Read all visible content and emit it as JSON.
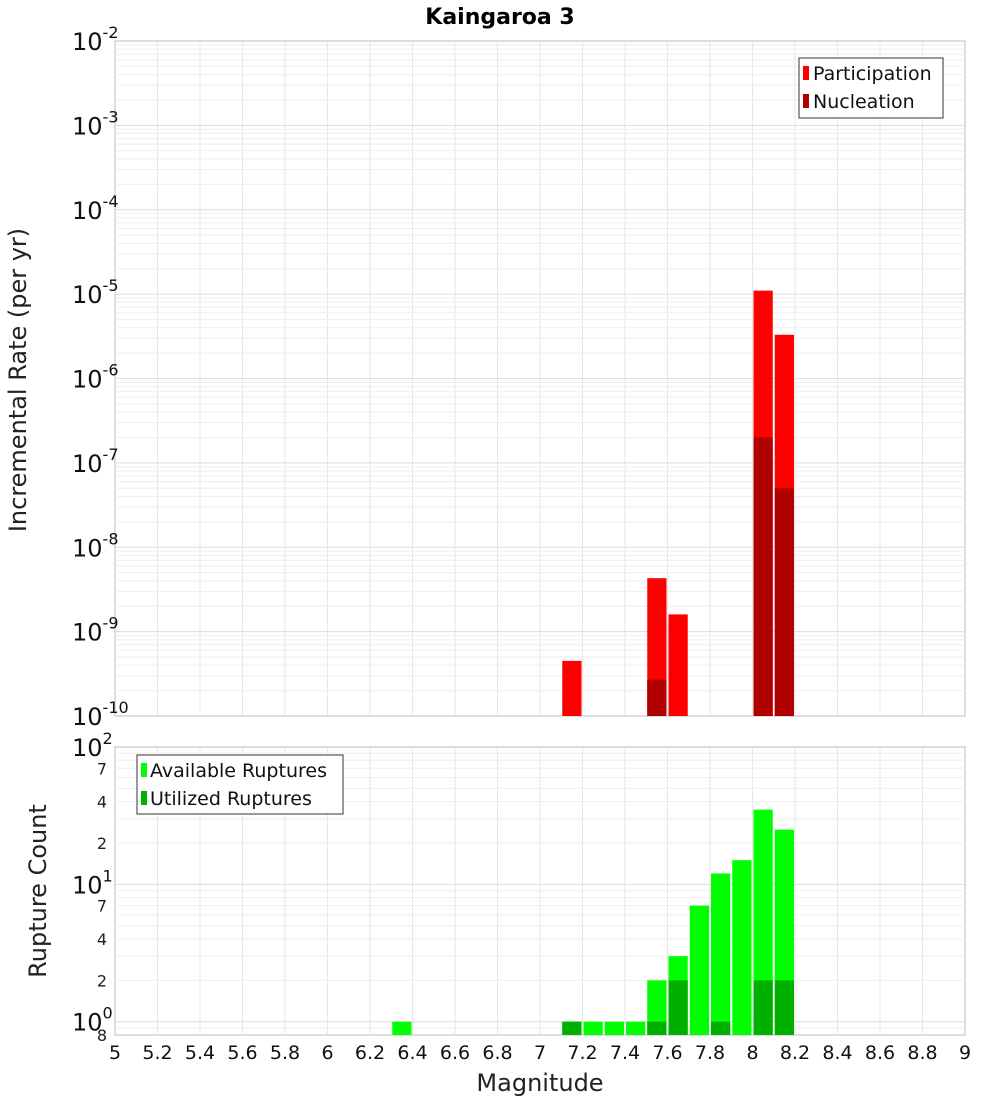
{
  "chart_data": [
    {
      "type": "bar",
      "title": "Kaingaroa 3",
      "xlabel": "",
      "ylabel": "Incremental Rate (per yr)",
      "yscale": "log",
      "xlim": [
        5,
        9
      ],
      "ylim": [
        1e-10,
        0.01
      ],
      "grid": true,
      "legend_position": "top-right",
      "bar_width": 0.1,
      "y_ticks": [
        {
          "base": "10",
          "exp": "-2"
        },
        {
          "base": "10",
          "exp": "-3"
        },
        {
          "base": "10",
          "exp": "-4"
        },
        {
          "base": "10",
          "exp": "-5"
        },
        {
          "base": "10",
          "exp": "-6"
        },
        {
          "base": "10",
          "exp": "-7"
        },
        {
          "base": "10",
          "exp": "-8"
        },
        {
          "base": "10",
          "exp": "-9"
        },
        {
          "base": "10",
          "exp": "-10"
        }
      ],
      "series": [
        {
          "name": "Participation",
          "color": "#ff0000",
          "x": [
            7.15,
            7.55,
            7.65,
            8.05,
            8.15
          ],
          "values": [
            4.5e-10,
            4.3e-09,
            1.6e-09,
            1.1e-05,
            3.3e-06
          ]
        },
        {
          "name": "Nucleation",
          "color": "#b00000",
          "x": [
            7.55,
            8.05,
            8.15
          ],
          "values": [
            2.7e-10,
            2e-07,
            5e-08
          ]
        }
      ]
    },
    {
      "type": "bar",
      "title": "",
      "xlabel": "Magnitude",
      "ylabel": "Rupture Count",
      "yscale": "log",
      "xlim": [
        5,
        9
      ],
      "ylim": [
        0.8,
        100
      ],
      "grid": true,
      "legend_position": "top-left",
      "bar_width": 0.1,
      "x_ticks": [
        "5",
        "5.2",
        "5.4",
        "5.6",
        "5.8",
        "6",
        "6.2",
        "6.4",
        "6.6",
        "6.8",
        "7",
        "7.2",
        "7.4",
        "7.6",
        "7.8",
        "8",
        "8.2",
        "8.4",
        "8.6",
        "8.8",
        "9"
      ],
      "y_major_ticks": [
        {
          "base": "10",
          "exp": "2"
        },
        {
          "base": "10",
          "exp": "1"
        },
        {
          "base": "10",
          "exp": "0"
        }
      ],
      "y_minor_ticks": [
        "7",
        "4",
        "2",
        "7",
        "4",
        "2",
        "8"
      ],
      "series": [
        {
          "name": "Available Ruptures",
          "color": "#00ff00",
          "x": [
            6.35,
            7.15,
            7.25,
            7.35,
            7.45,
            7.55,
            7.65,
            7.75,
            7.85,
            7.95,
            8.05,
            8.15
          ],
          "values": [
            1,
            1,
            1,
            1,
            1,
            2,
            3,
            7,
            12,
            15,
            35,
            25
          ]
        },
        {
          "name": "Utilized Ruptures",
          "color": "#00b000",
          "x": [
            7.15,
            7.55,
            7.65,
            7.85,
            8.05,
            8.15
          ],
          "values": [
            1,
            1,
            2,
            1,
            2,
            2
          ]
        }
      ]
    }
  ]
}
